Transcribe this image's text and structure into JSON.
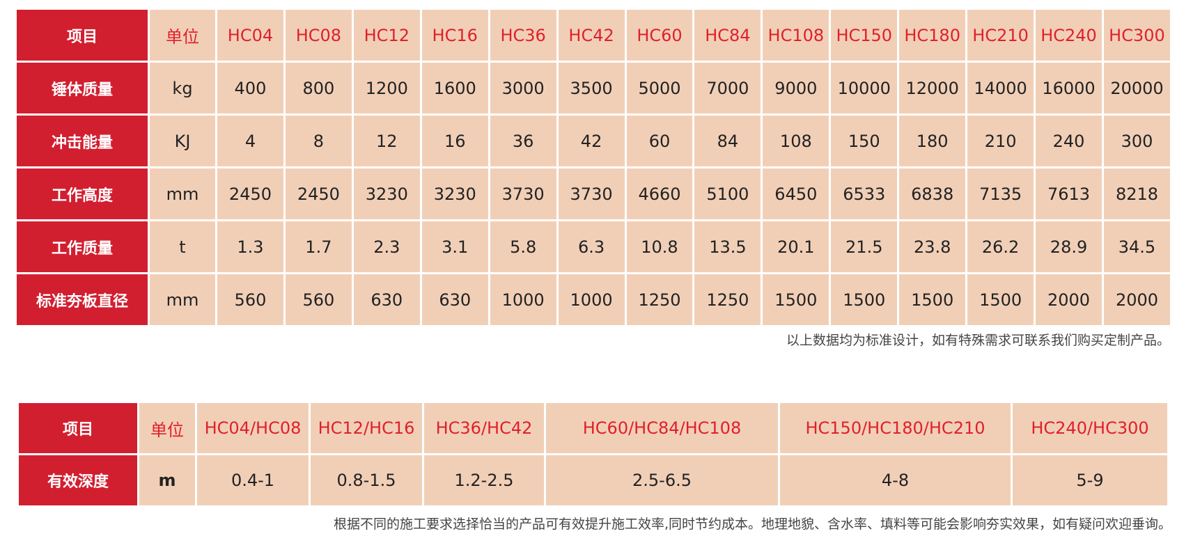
{
  "spec_table": {
    "header": {
      "item": "项目",
      "unit": "单位",
      "models": [
        "HC04",
        "HC08",
        "HC12",
        "HC16",
        "HC36",
        "HC42",
        "HC60",
        "HC84",
        "HC108",
        "HC150",
        "HC180",
        "HC210",
        "HC240",
        "HC300"
      ]
    },
    "rows": [
      {
        "label": "锤体质量",
        "unit": "kg",
        "values": [
          "400",
          "800",
          "1200",
          "1600",
          "3000",
          "3500",
          "5000",
          "7000",
          "9000",
          "10000",
          "12000",
          "14000",
          "16000",
          "20000"
        ]
      },
      {
        "label": "冲击能量",
        "unit": "KJ",
        "values": [
          "4",
          "8",
          "12",
          "16",
          "36",
          "42",
          "60",
          "84",
          "108",
          "150",
          "180",
          "210",
          "240",
          "300"
        ]
      },
      {
        "label": "工作高度",
        "unit": "mm",
        "values": [
          "2450",
          "2450",
          "3230",
          "3230",
          "3730",
          "3730",
          "4660",
          "5100",
          "6450",
          "6533",
          "6838",
          "7135",
          "7613",
          "8218"
        ]
      },
      {
        "label": "工作质量",
        "unit": "t",
        "values": [
          "1.3",
          "1.7",
          "2.3",
          "3.1",
          "5.8",
          "6.3",
          "10.8",
          "13.5",
          "20.1",
          "21.5",
          "23.8",
          "26.2",
          "28.9",
          "34.5"
        ]
      },
      {
        "label": "标准夯板直径",
        "unit": "mm",
        "values": [
          "560",
          "560",
          "630",
          "630",
          "1000",
          "1000",
          "1250",
          "1250",
          "1500",
          "1500",
          "1500",
          "1500",
          "2000",
          "2000"
        ]
      }
    ],
    "note": "以上数据均为标准设计，如有特殊需求可联系我们购买定制产品。"
  },
  "depth_table": {
    "header": {
      "item": "项目",
      "unit": "单位",
      "models": [
        "HC04/HC08",
        "HC12/HC16",
        "HC36/HC42",
        "HC60/HC84/HC108",
        "HC150/HC180/HC210",
        "HC240/HC300"
      ]
    },
    "row": {
      "label": "有效深度",
      "unit": "m",
      "values": [
        "0.4-1",
        "0.8-1.5",
        "1.2-2.5",
        "2.5-6.5",
        "4-8",
        "5-9"
      ]
    },
    "note": "根据不同的施工要求选择恰当的产品可有效提升施工效率,同时节约成本。地理地貌、含水率、填料等可能会影响夯实效果，如有疑问欢迎垂询。"
  },
  "colors": {
    "label_bg": "#d21f30",
    "cell_bg": "#f1cfb7",
    "header_text": "#e0202a"
  }
}
